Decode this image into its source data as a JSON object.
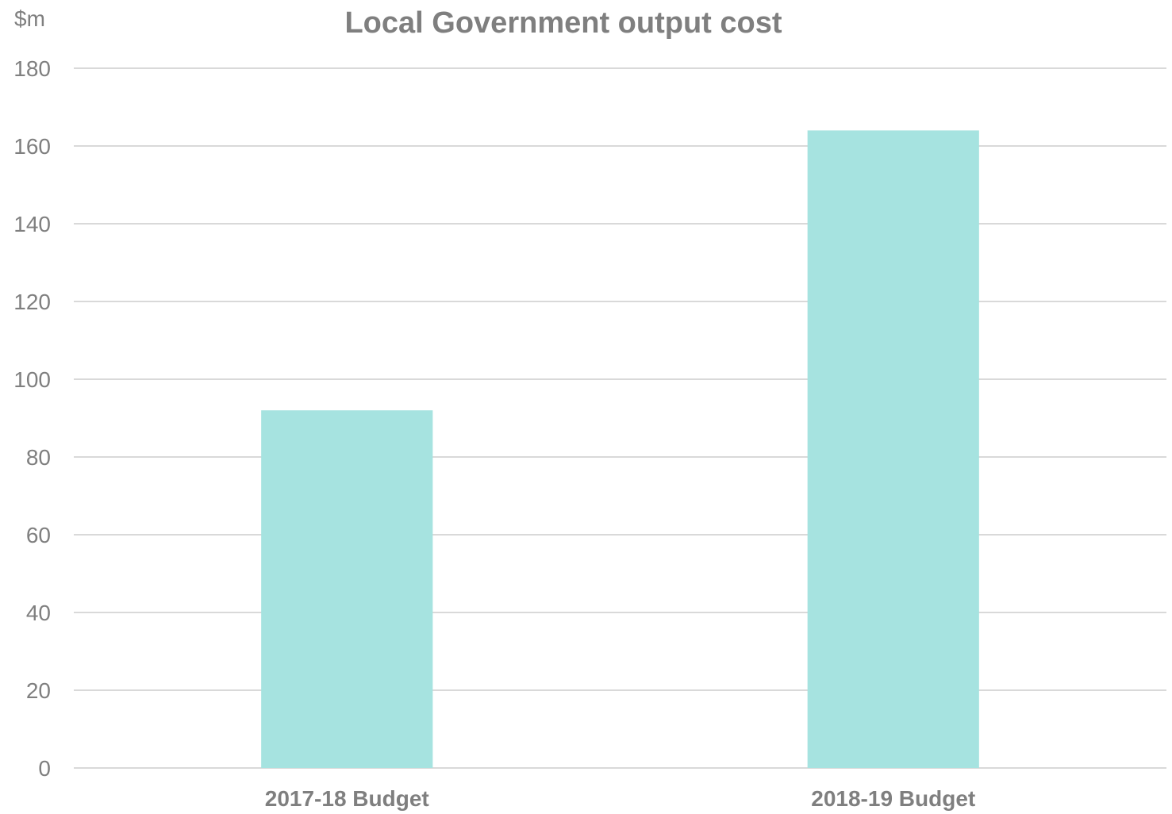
{
  "chart_data": {
    "type": "bar",
    "title": "Local Government output cost",
    "unit_label": "$m",
    "xlabel": "",
    "ylabel": "",
    "categories": [
      "2017-18 Budget",
      "2018-19 Budget"
    ],
    "values": [
      92,
      164
    ],
    "ylim": [
      0,
      180
    ],
    "yticks": [
      "0",
      "20",
      "40",
      "60",
      "80",
      "100",
      "120",
      "140",
      "160",
      "180"
    ],
    "grid": true,
    "legend": "none",
    "colors": {
      "bar": "#a6e3e0",
      "text": "#7f7f7f",
      "grid": "#d9d9d9"
    }
  }
}
